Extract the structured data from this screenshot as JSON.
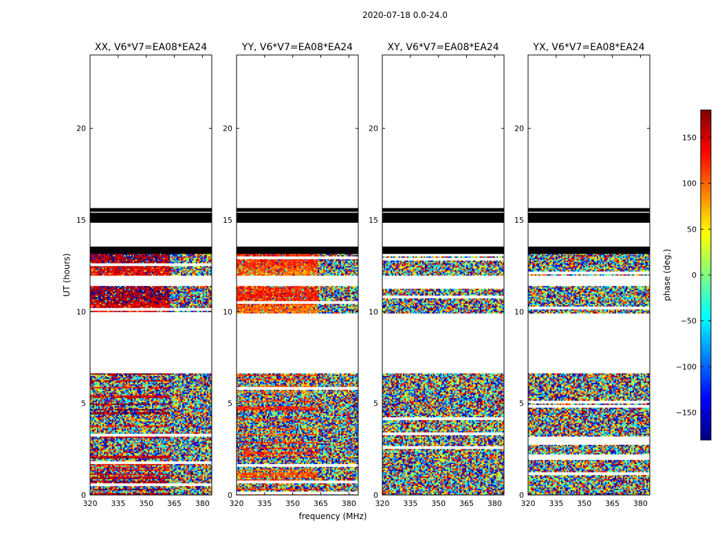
{
  "figure_title": "2020-07-18 0.0-24.0",
  "chart_data": {
    "type": "heatmap",
    "title": "2020-07-18 0.0-24.0",
    "xlabel": "frequency (MHz)",
    "ylabel": "UT (hours)",
    "xlim": [
      320,
      385
    ],
    "ylim": [
      0,
      24
    ],
    "xticks": [
      320,
      335,
      350,
      365,
      380
    ],
    "yticks": [
      0,
      5,
      10,
      15,
      20
    ],
    "colorbar": {
      "label": "phase (deg.)",
      "range": [
        -180,
        180
      ],
      "ticks": [
        150,
        100,
        50,
        0,
        -50,
        -100,
        -150
      ],
      "colormap": "jet"
    },
    "time_segments": [
      {
        "start": 0.0,
        "end": 6.65,
        "state": "data",
        "note": "noisy"
      },
      {
        "start": 9.95,
        "end": 11.4,
        "state": "data"
      },
      {
        "start": 12.0,
        "end": 13.15,
        "state": "data"
      },
      {
        "start": 13.15,
        "end": 13.55,
        "state": "flagged"
      },
      {
        "start": 14.85,
        "end": 15.4,
        "state": "flagged"
      },
      {
        "start": 15.45,
        "end": 15.65,
        "state": "flagged"
      }
    ],
    "panels": [
      {
        "title": "XX, V6*V7=EA08*EA24",
        "coherent_phase_deg": 155,
        "coherent_until_mhz": 362
      },
      {
        "title": "YY, V6*V7=EA08*EA24",
        "coherent_phase_deg": 110,
        "coherent_until_mhz": 363
      },
      {
        "title": "XY, V6*V7=EA08*EA24",
        "coherent_phase_deg": null,
        "coherent_until_mhz": null
      },
      {
        "title": "YX, V6*V7=EA08*EA24",
        "coherent_phase_deg": null,
        "coherent_until_mhz": null
      }
    ]
  }
}
